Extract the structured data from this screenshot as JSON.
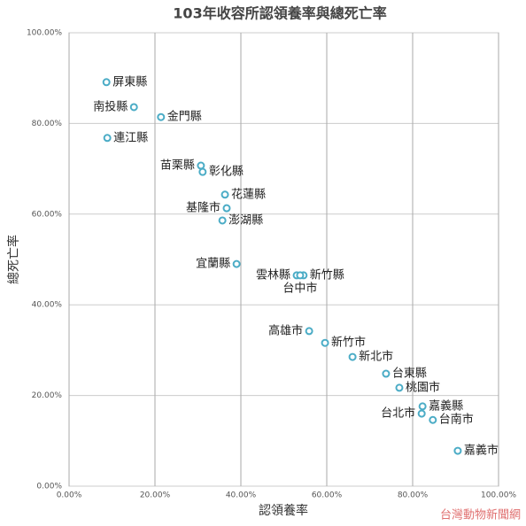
{
  "chart_data": {
    "type": "scatter",
    "title": "103年收容所認領養率與總死亡率",
    "x_label": "認領養率",
    "y_label": "總死亡率",
    "watermark": "台灣動物新聞網",
    "labels": [
      "屏東縣",
      "南投縣",
      "金門縣",
      "連江縣",
      "苗栗縣",
      "彰化縣",
      "花蓮縣",
      "基隆市",
      "澎湖縣",
      "宜蘭縣",
      "雲林縣",
      "新竹縣",
      "台中市",
      "高雄市",
      "新竹市",
      "新北市",
      "台東縣",
      "桃園市",
      "嘉義縣",
      "台北市",
      "台南市",
      "嘉義市"
    ],
    "x": [
      8.7,
      15.1,
      21.4,
      8.9,
      30.7,
      31.1,
      36.3,
      36.7,
      35.7,
      39.0,
      53.0,
      54.6,
      53.8,
      55.9,
      59.6,
      66.0,
      73.8,
      76.9,
      82.3,
      82.1,
      84.7,
      90.5
    ],
    "values": [
      89.1,
      83.6,
      81.4,
      76.8,
      70.7,
      69.3,
      64.3,
      61.3,
      58.6,
      49.0,
      46.5,
      46.5,
      46.5,
      34.2,
      31.6,
      28.5,
      24.8,
      21.7,
      17.6,
      16.0,
      14.6,
      7.8
    ],
    "color": "#4bacc6",
    "xlim": [
      0,
      100
    ],
    "ylim": [
      0,
      100
    ],
    "xticks": [
      {
        "value": 0,
        "label": "0.00%"
      },
      {
        "value": 20,
        "label": "20.00%"
      },
      {
        "value": 40,
        "label": "40.00%"
      },
      {
        "value": 60,
        "label": "60.00%"
      },
      {
        "value": 80,
        "label": "80.00%"
      },
      {
        "value": 100,
        "label": "100.00%"
      }
    ],
    "yticks": [
      {
        "value": 0,
        "label": "0.00%"
      },
      {
        "value": 20,
        "label": "20.00%"
      },
      {
        "value": 40,
        "label": "40.00%"
      },
      {
        "value": 60,
        "label": "60.00%"
      },
      {
        "value": 80,
        "label": "80.00%"
      },
      {
        "value": 100,
        "label": "100.00%"
      }
    ],
    "grid": true
  }
}
